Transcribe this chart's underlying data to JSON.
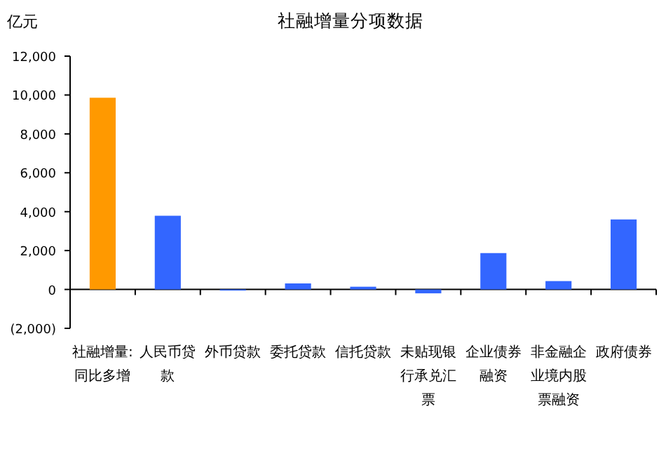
{
  "chart_data": {
    "type": "bar",
    "title": "社融增量分项数据",
    "ylabel": "亿元",
    "categories": [
      "社融增量:同比多增",
      "人民币贷款",
      "外币贷款",
      "委托贷款",
      "信托贷款",
      "未贴现银行承兑汇票",
      "企业债券融资",
      "非金融企业境内股票融资",
      "政府债券"
    ],
    "values": [
      9860,
      3790,
      -50,
      310,
      140,
      -200,
      1870,
      430,
      3600
    ],
    "colors": [
      "#ff9900",
      "#3366ff",
      "#3366ff",
      "#3366ff",
      "#3366ff",
      "#3366ff",
      "#3366ff",
      "#3366ff",
      "#3366ff"
    ],
    "ylim": [
      -2000,
      12000
    ],
    "yticks": [
      {
        "value": -2000,
        "label": "(2,000)"
      },
      {
        "value": 0,
        "label": "0"
      },
      {
        "value": 2000,
        "label": "2,000"
      },
      {
        "value": 4000,
        "label": "4,000"
      },
      {
        "value": 6000,
        "label": "6,000"
      },
      {
        "value": 8000,
        "label": "8,000"
      },
      {
        "value": 10000,
        "label": "10,000"
      },
      {
        "value": 12000,
        "label": "12,000"
      }
    ]
  }
}
